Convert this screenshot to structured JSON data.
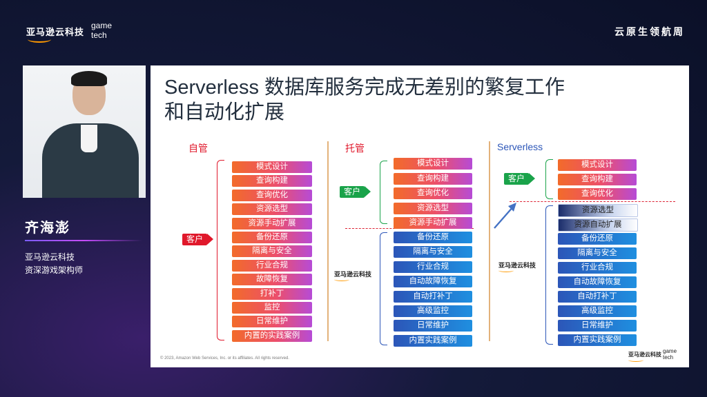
{
  "header": {
    "brand": "亚马逊云科技",
    "game": "game",
    "tech": "tech",
    "summit": "云原生领航周"
  },
  "speaker": {
    "name": "齐海澎",
    "company": "亚马逊云科技",
    "role": "资深游戏架构师"
  },
  "slide": {
    "title_line1": "Serverless 数据库服务完成无差别的繁复工作",
    "title_line2": "和自动化扩展",
    "col1_title": "自管",
    "col2_title": "托管",
    "col3_title": "Serverless",
    "customer_tag": "客户",
    "aws_logo": "亚马逊云科技",
    "col1_items": [
      "模式设计",
      "查询构建",
      "查询优化",
      "资源选型",
      "资源手动扩展",
      "备份还原",
      "隔离与安全",
      "行业合规",
      "故障恢复",
      "打补丁",
      "监控",
      "日常维护",
      "内置的实践案例"
    ],
    "col2_customer_items": [
      "模式设计",
      "查询构建",
      "查询优化",
      "资源选型",
      "资源手动扩展"
    ],
    "col2_aws_items": [
      "备份还原",
      "隔离与安全",
      "行业合规",
      "自动故障恢复",
      "自动打补丁",
      "高级监控",
      "日常维护",
      "内置实践案例"
    ],
    "col3_customer_items": [
      "模式设计",
      "查询构建",
      "查询优化"
    ],
    "col3_aws_items": [
      "资源选型",
      "资源自动扩展",
      "备份还原",
      "隔离与安全",
      "行业合规",
      "自动故障恢复",
      "自动打补丁",
      "高级监控",
      "日常维护",
      "内置实践案例"
    ],
    "copyright": "© 2023, Amazon Web Services, Inc. or its affiliates. All rights reserved.",
    "footer_logo": "亚马逊云科技",
    "footer_game": "game",
    "footer_tech": "tech"
  },
  "colors": {
    "customer_box_gradient": [
      "#f26b2a",
      "#ec4f6b",
      "#b64bd6"
    ],
    "aws_box_gradient": [
      "#2c56b8",
      "#1f8fe0"
    ],
    "col1_title": "#e0182b",
    "col2_title": "#e0182b",
    "col3_title": "#2c56b8"
  }
}
